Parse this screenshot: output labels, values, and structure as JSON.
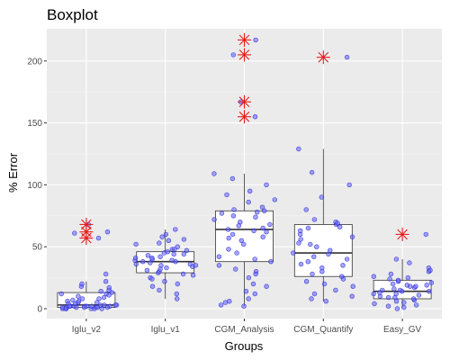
{
  "chart_data": {
    "type": "boxplot",
    "title": "Boxplot",
    "xlabel": "Groups",
    "ylabel": "% Error",
    "ylim": [
      -8,
      226
    ],
    "y_ticks": [
      0,
      50,
      100,
      150,
      200
    ],
    "grid": true,
    "categories": [
      "Iglu_v2",
      "Iglu_v1",
      "CGM_Analysis",
      "CGM_Quantify",
      "Easy_GV"
    ],
    "colors": {
      "panel": "#EBEBEB",
      "grid_major": "#FFFFFF",
      "grid_minor": "#F5F5F5",
      "box_fill": "#FFFFFF",
      "box_line": "#333333",
      "point_fill": "#6A6AFF",
      "point_stroke": "#1F1FCC",
      "outlier": "#E81C1C"
    },
    "boxes": [
      {
        "category": "Iglu_v2",
        "whisker_low": 0,
        "q1": 1,
        "median": 3,
        "q3": 13,
        "whisker_high": 22
      },
      {
        "category": "Iglu_v1",
        "whisker_low": 8,
        "q1": 29,
        "median": 38,
        "q3": 46,
        "whisker_high": 64
      },
      {
        "category": "CGM_Analysis",
        "whisker_low": 2,
        "q1": 38,
        "median": 64,
        "q3": 79,
        "whisker_high": 109
      },
      {
        "category": "CGM_Quantify",
        "whisker_low": 6,
        "q1": 26,
        "median": 45,
        "q3": 68,
        "whisker_high": 129
      },
      {
        "category": "Easy_GV",
        "whisker_low": 1,
        "q1": 8,
        "median": 14,
        "q3": 23,
        "whisker_high": 40
      }
    ],
    "outliers": [
      {
        "category": "Iglu_v2",
        "values": [
          68,
          62,
          57
        ]
      },
      {
        "category": "CGM_Analysis",
        "values": [
          217,
          205,
          167,
          155
        ]
      },
      {
        "category": "CGM_Quantify",
        "values": [
          203
        ]
      },
      {
        "category": "Easy_GV",
        "values": [
          60
        ]
      }
    ],
    "points": [
      {
        "category": "Iglu_v2",
        "values": [
          1,
          2,
          0,
          3,
          1,
          5,
          0,
          2,
          8,
          12,
          14,
          1,
          3,
          6,
          0,
          2,
          4,
          9,
          11,
          1,
          0,
          2,
          3,
          5,
          7,
          10,
          13,
          15,
          18,
          20,
          22,
          1,
          0,
          4,
          6,
          2,
          3,
          1,
          0,
          2,
          8,
          17,
          28,
          61,
          68,
          62,
          57,
          1,
          2,
          12
        ]
      },
      {
        "category": "Iglu_v1",
        "values": [
          8,
          15,
          20,
          25,
          29,
          30,
          32,
          34,
          35,
          36,
          37,
          38,
          38,
          39,
          40,
          41,
          42,
          43,
          44,
          45,
          46,
          47,
          48,
          50,
          52,
          55,
          58,
          60,
          64,
          18,
          22,
          27,
          31,
          33,
          36,
          39,
          41,
          44,
          48,
          53,
          56,
          12,
          24,
          28,
          35
        ]
      },
      {
        "category": "CGM_Analysis",
        "values": [
          2,
          5,
          8,
          12,
          18,
          25,
          30,
          35,
          38,
          42,
          48,
          55,
          58,
          60,
          62,
          64,
          65,
          67,
          70,
          72,
          75,
          78,
          79,
          82,
          88,
          95,
          100,
          105,
          109,
          6,
          14,
          20,
          28,
          40,
          52,
          63,
          68,
          74,
          77,
          86,
          92,
          155,
          167,
          205,
          217,
          32,
          45,
          57,
          80,
          3
        ]
      },
      {
        "category": "CGM_Quantify",
        "values": [
          6,
          10,
          15,
          20,
          24,
          26,
          28,
          30,
          33,
          36,
          40,
          42,
          45,
          47,
          50,
          53,
          56,
          60,
          63,
          66,
          68,
          70,
          72,
          80,
          90,
          100,
          110,
          129,
          203,
          12,
          18,
          22,
          38,
          44,
          58,
          65,
          69,
          8,
          35,
          52
        ]
      },
      {
        "category": "Easy_GV",
        "values": [
          1,
          3,
          5,
          7,
          8,
          9,
          10,
          11,
          12,
          13,
          14,
          15,
          16,
          17,
          18,
          19,
          20,
          22,
          23,
          25,
          28,
          30,
          33,
          37,
          40,
          60,
          2,
          4,
          6,
          12,
          14,
          21,
          26,
          0,
          9,
          15,
          19,
          24,
          31,
          18
        ]
      }
    ]
  }
}
